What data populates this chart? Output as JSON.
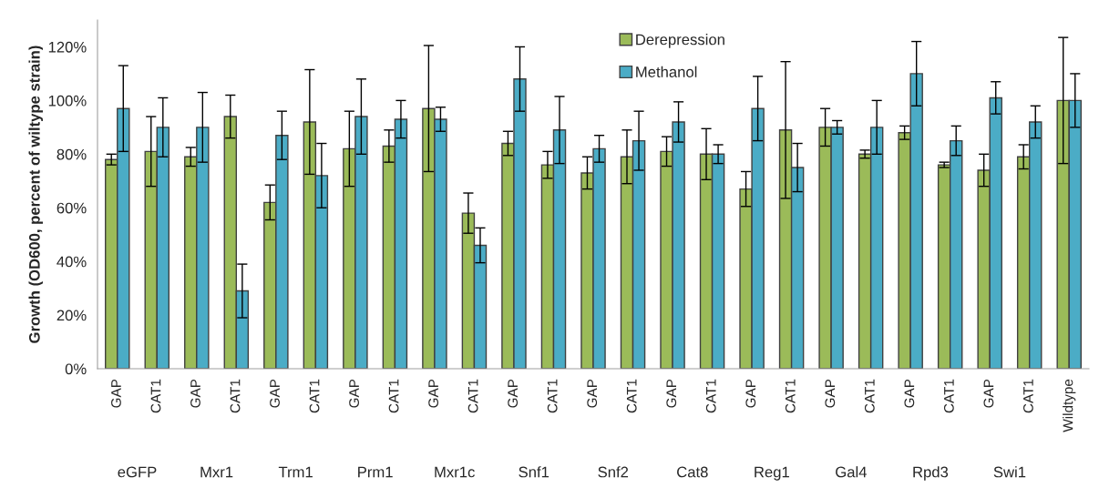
{
  "chart_data": {
    "type": "bar",
    "ylabel": "Growth (OD600, percent of wiltype strain)",
    "categories": [
      "GAP",
      "CAT1",
      "GAP",
      "CAT1",
      "GAP",
      "CAT1",
      "GAP",
      "CAT1",
      "GAP",
      "CAT1",
      "GAP",
      "CAT1",
      "GAP",
      "CAT1",
      "GAP",
      "CAT1",
      "GAP",
      "CAT1",
      "GAP",
      "CAT1",
      "GAP",
      "CAT1",
      "GAP",
      "CAT1",
      "Wildtype"
    ],
    "annotations": [
      "eGFP",
      "Mxr1",
      "Trm1",
      "Prm1",
      "Mxr1c",
      "Snf1",
      "Snf2",
      "Cat8",
      "Reg1",
      "Gal4",
      "Rpd3",
      "Swi1"
    ],
    "series": [
      {
        "name": "Derepression",
        "color": "#9bbb59",
        "values": [
          78,
          81,
          79,
          94,
          62,
          92,
          82,
          83,
          97,
          58,
          84,
          76,
          73,
          79,
          81,
          80,
          67,
          89,
          90,
          80,
          88,
          76,
          74,
          79,
          100
        ],
        "errors": [
          2,
          13,
          3.5,
          8,
          6.5,
          19.5,
          14,
          6,
          23.5,
          7.5,
          4.5,
          5,
          6,
          10,
          5.5,
          9.5,
          6.5,
          25.5,
          7,
          1.5,
          2.5,
          1,
          6,
          4.5,
          23.5
        ]
      },
      {
        "name": "Methanol",
        "color": "#4bacc6",
        "values": [
          97,
          90,
          90,
          29,
          87,
          72,
          94,
          93,
          93,
          46,
          108,
          89,
          82,
          85,
          92,
          80,
          97,
          75,
          90,
          90,
          110,
          85,
          101,
          92,
          100
        ],
        "errors": [
          16,
          11,
          13,
          10,
          9,
          12,
          14,
          7,
          4.5,
          6.5,
          12,
          12.5,
          5,
          11,
          7.5,
          3.5,
          12,
          9,
          2.5,
          10,
          12,
          5.5,
          6,
          6,
          10
        ]
      }
    ],
    "ylim": [
      0,
      130
    ],
    "yticks": [
      {
        "value": 0,
        "label": "0%"
      },
      {
        "value": 20,
        "label": "20%"
      },
      {
        "value": 40,
        "label": "40%"
      },
      {
        "value": 60,
        "label": "60%"
      },
      {
        "value": 80,
        "label": "80%"
      },
      {
        "value": 100,
        "label": "100%"
      },
      {
        "value": 120,
        "label": "120%"
      }
    ],
    "grid": false,
    "legend": "top"
  }
}
